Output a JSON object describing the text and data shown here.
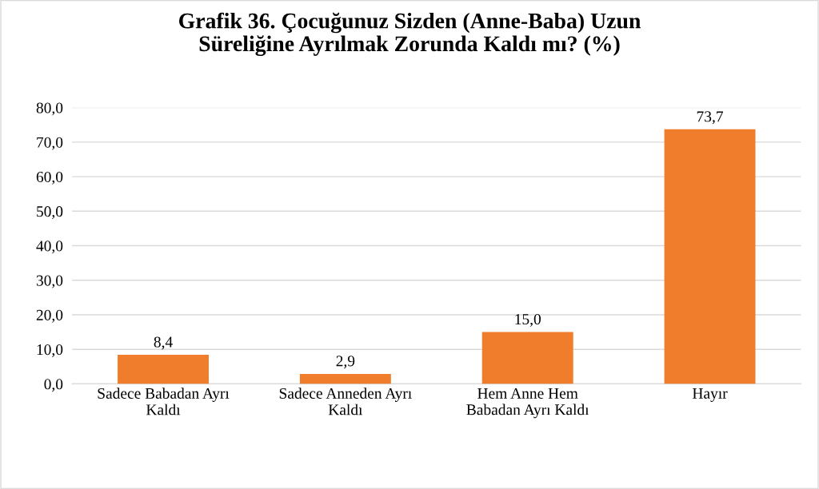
{
  "chart_data": {
    "type": "bar",
    "title": "Grafik 36. Çocuğunuz Sizden (Anne-Baba) Uzun\nSüreliğine Ayrılmak Zorunda Kaldı mı? (%)",
    "categories": [
      "Sadece Babadan Ayrı\nKaldı",
      "Sadece Anneden Ayrı\nKaldı",
      "Hem Anne Hem\nBabadan Ayrı Kaldı",
      "Hayır"
    ],
    "values": [
      8.4,
      2.9,
      15.0,
      73.7
    ],
    "value_labels": [
      "8,4",
      "2,9",
      "15,0",
      "73,7"
    ],
    "color": "#f07d2c",
    "ylim": [
      0,
      80
    ],
    "yticks": [
      {
        "value": 0,
        "label": "0,0"
      },
      {
        "value": 10,
        "label": "10,0"
      },
      {
        "value": 20,
        "label": "20,0"
      },
      {
        "value": 30,
        "label": "30,0"
      },
      {
        "value": 40,
        "label": "40,0"
      },
      {
        "value": 50,
        "label": "50,0"
      },
      {
        "value": 60,
        "label": "60,0"
      },
      {
        "value": 70,
        "label": "70,0"
      },
      {
        "value": 80,
        "label": "80,0"
      }
    ],
    "grid": "y",
    "legend": false
  }
}
